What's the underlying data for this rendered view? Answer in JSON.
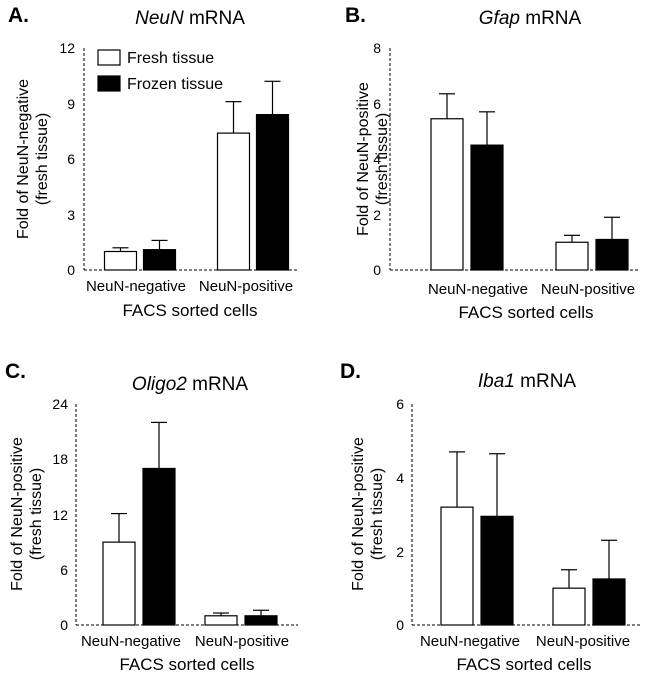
{
  "colors": {
    "fresh": "#ffffff",
    "frozen": "#000000",
    "axis": "#000000"
  },
  "legend": {
    "fresh_label": "Fresh tissue",
    "frozen_label": "Frozen tissue"
  },
  "panels": [
    {
      "letter": "A.",
      "gene": "NeuN",
      "suffix": " mRNA",
      "ylabel_line1": "Fold of NeuN-negative",
      "ylabel_line2": "(fresh tissue)",
      "xlabel": "FACS sorted cells",
      "categories": [
        "NeuN-negative",
        "NeuN-positive"
      ],
      "yticks": [
        "0",
        "3",
        "6",
        "9",
        "12"
      ]
    },
    {
      "letter": "B.",
      "gene": "Gfap",
      "suffix": " mRNA",
      "ylabel_line1": "Fold of NeuN-positive",
      "ylabel_line2": "(fresh tissue)",
      "xlabel": "FACS sorted cells",
      "categories": [
        "NeuN-negative",
        "NeuN-positive"
      ],
      "yticks": [
        "0",
        "2",
        "4",
        "6",
        "8"
      ]
    },
    {
      "letter": "C.",
      "gene": "Oligo2",
      "suffix": " mRNA",
      "ylabel_line1": "Fold of NeuN-positive",
      "ylabel_line2": "(fresh tissue)",
      "xlabel": "FACS sorted cells",
      "categories": [
        "NeuN-negative",
        "NeuN-positive"
      ],
      "yticks": [
        "0",
        "6",
        "12",
        "18",
        "24"
      ]
    },
    {
      "letter": "D.",
      "gene": "Iba1",
      "suffix": " mRNA",
      "ylabel_line1": "Fold of NeuN-positive",
      "ylabel_line2": "(fresh tissue)",
      "xlabel": "FACS sorted cells",
      "categories": [
        "NeuN-negative",
        "NeuN-positive"
      ],
      "yticks": [
        "0",
        "2",
        "4",
        "6"
      ]
    }
  ],
  "chart_data": [
    {
      "type": "bar",
      "title": "NeuN mRNA",
      "xlabel": "FACS sorted cells",
      "ylabel": "Fold of NeuN-negative (fresh tissue)",
      "categories": [
        "NeuN-negative",
        "NeuN-positive"
      ],
      "ylim": [
        0,
        12
      ],
      "legend": "top-left",
      "series": [
        {
          "name": "Fresh tissue",
          "values": [
            1.0,
            7.4
          ],
          "error": [
            0.2,
            1.7
          ]
        },
        {
          "name": "Frozen tissue",
          "values": [
            1.1,
            8.4
          ],
          "error": [
            0.5,
            1.8
          ]
        }
      ]
    },
    {
      "type": "bar",
      "title": "Gfap mRNA",
      "xlabel": "FACS sorted cells",
      "ylabel": "Fold of NeuN-positive (fresh tissue)",
      "categories": [
        "NeuN-negative",
        "NeuN-positive"
      ],
      "ylim": [
        0,
        8
      ],
      "series": [
        {
          "name": "Fresh tissue",
          "values": [
            5.45,
            1.0
          ],
          "error": [
            0.9,
            0.25
          ]
        },
        {
          "name": "Frozen tissue",
          "values": [
            4.5,
            1.1
          ],
          "error": [
            1.2,
            0.8
          ]
        }
      ]
    },
    {
      "type": "bar",
      "title": "Oligo2 mRNA",
      "xlabel": "FACS sorted cells",
      "ylabel": "Fold of NeuN-positive (fresh tissue)",
      "categories": [
        "NeuN-negative",
        "NeuN-positive"
      ],
      "ylim": [
        0,
        24
      ],
      "series": [
        {
          "name": "Fresh tissue",
          "values": [
            9.0,
            1.0
          ],
          "error": [
            3.1,
            0.3
          ]
        },
        {
          "name": "Frozen tissue",
          "values": [
            17.0,
            1.0
          ],
          "error": [
            5.0,
            0.6
          ]
        }
      ]
    },
    {
      "type": "bar",
      "title": "Iba1 mRNA",
      "xlabel": "FACS sorted cells",
      "ylabel": "Fold of NeuN-positive (fresh tissue)",
      "categories": [
        "NeuN-negative",
        "NeuN-positive"
      ],
      "ylim": [
        0,
        6
      ],
      "series": [
        {
          "name": "Fresh tissue",
          "values": [
            3.2,
            1.0
          ],
          "error": [
            1.5,
            0.5
          ]
        },
        {
          "name": "Frozen tissue",
          "values": [
            2.95,
            1.25
          ],
          "error": [
            1.7,
            1.05
          ]
        }
      ]
    }
  ]
}
